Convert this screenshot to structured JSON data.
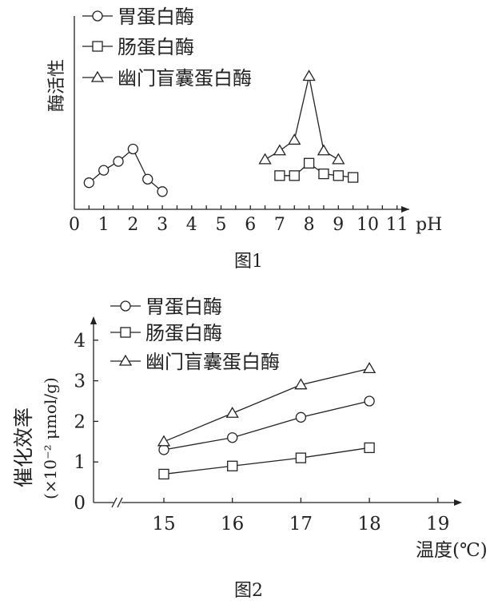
{
  "chart_data": [
    {
      "type": "line",
      "caption": "图1",
      "xlabel": "pH",
      "ylabel": "酶活性",
      "xlim": [
        0,
        11
      ],
      "x_ticks": [
        "0",
        "1",
        "2",
        "3",
        "4",
        "5",
        "6",
        "7",
        "8",
        "9",
        "10",
        "11"
      ],
      "y_ticks": [],
      "grid": false,
      "legend_position": "top-left",
      "series": [
        {
          "name": "胃蛋白酶",
          "marker": "circle",
          "x": [
            0.5,
            1,
            1.5,
            2,
            2.5,
            3
          ],
          "y": [
            1.5,
            2.2,
            2.7,
            3.4,
            1.7,
            1.0
          ]
        },
        {
          "name": "肠蛋白酶",
          "marker": "square",
          "x": [
            7,
            7.5,
            8,
            8.5,
            9,
            9.5
          ],
          "y": [
            1.9,
            1.9,
            2.6,
            2.0,
            1.9,
            1.8
          ]
        },
        {
          "name": "幽门盲囊蛋白酶",
          "marker": "triangle",
          "x": [
            6.5,
            7,
            7.5,
            8,
            8.5,
            9
          ],
          "y": [
            2.8,
            3.3,
            3.9,
            7.5,
            3.3,
            2.8
          ]
        }
      ]
    },
    {
      "type": "line",
      "caption": "图2",
      "xlabel": "温度(℃)",
      "ylabel": "催化效率",
      "ylabel_unit": "(×10⁻² μmol/g)",
      "xlim": [
        15,
        19
      ],
      "ylim": [
        0,
        4
      ],
      "x_ticks": [
        "15",
        "16",
        "17",
        "18",
        "19"
      ],
      "y_ticks": [
        "0",
        "1",
        "2",
        "3",
        "4"
      ],
      "axis_break": true,
      "grid": false,
      "legend_position": "top-left",
      "series": [
        {
          "name": "胃蛋白酶",
          "marker": "circle",
          "x": [
            15,
            16,
            17,
            18
          ],
          "y": [
            1.3,
            1.6,
            2.1,
            2.5
          ]
        },
        {
          "name": "肠蛋白酶",
          "marker": "square",
          "x": [
            15,
            16,
            17,
            18
          ],
          "y": [
            0.7,
            0.9,
            1.1,
            1.35
          ]
        },
        {
          "name": "幽门盲囊蛋白酶",
          "marker": "triangle",
          "x": [
            15,
            16,
            17,
            18
          ],
          "y": [
            1.5,
            2.2,
            2.9,
            3.3
          ]
        }
      ]
    }
  ]
}
